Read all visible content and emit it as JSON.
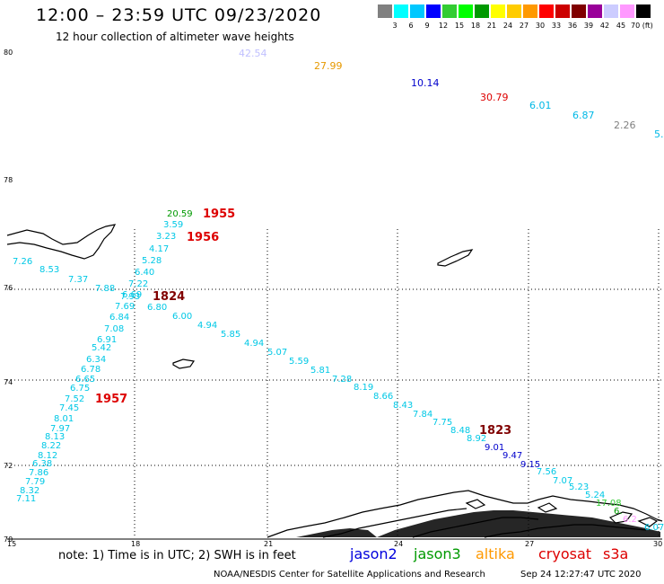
{
  "header": {
    "title": "12:00 – 23:59 UTC 09/23/2020",
    "subtitle": "12 hour collection of altimeter wave heights"
  },
  "color_scale": {
    "labels": [
      "3",
      "6",
      "9",
      "12",
      "15",
      "18",
      "21",
      "24",
      "27",
      "30",
      "33",
      "36",
      "39",
      "42",
      "45",
      "70 (ft)"
    ],
    "colors": [
      "#808080",
      "#00ffff",
      "#00c8ff",
      "#0000ff",
      "#33cc33",
      "#00ff00",
      "#009900",
      "#ffff00",
      "#ffcc00",
      "#ff9900",
      "#ff0000",
      "#cc0000",
      "#800000",
      "#990099",
      "#ccccff",
      "#ff99ff",
      "#000000"
    ]
  },
  "axes": {
    "lat_labels": [
      "80",
      "78",
      "76",
      "74",
      "72",
      "70"
    ],
    "lon_labels": [
      "15",
      "18",
      "21",
      "24",
      "27",
      "30"
    ]
  },
  "tracks": {
    "top": [
      {
        "v": "42.54",
        "c": "#c0c0ff"
      },
      {
        "v": "27.99",
        "c": "#e69900"
      },
      {
        "v": "10.14",
        "c": "#0000cc"
      },
      {
        "v": "30.79",
        "c": "#dd0000"
      },
      {
        "v": "6.01",
        "c": "#00b8e6"
      },
      {
        "v": "6.87",
        "c": "#00b8e6"
      },
      {
        "v": "2.26",
        "c": "#808080"
      },
      {
        "v": "5.",
        "c": "#00b8e6"
      }
    ],
    "track_1956": [
      "20.59",
      "3.59",
      "3.23",
      "4.17",
      "5.28",
      "6.40",
      "7.22",
      "7.88",
      "6.69",
      "7.69",
      "6.84",
      "7.08",
      "6.91",
      "5.42",
      "6.34",
      "6.78",
      "6.65",
      "6.75",
      "7.52",
      "7.45",
      "8.01",
      "7.97",
      "8.13",
      "8.22",
      "8.12",
      "6.38",
      "7.86",
      "7.79",
      "8.32",
      "7.11"
    ],
    "track_west": [
      "7.26",
      "8.53",
      "7.37",
      "7.93"
    ],
    "track_1824": [
      "6.80",
      "6.00",
      "4.94",
      "5.85",
      "4.94",
      "5.07",
      "5.59",
      "5.81",
      "7.28",
      "8.19",
      "8.66",
      "8.43",
      "7.84",
      "7.75",
      "8.48",
      "8.92",
      "9.01",
      "9.47",
      "9.15",
      "7.56",
      "7.07",
      "5.23",
      "5.24",
      "17.08",
      "6.",
      "6.2",
      "6.07"
    ],
    "time_labels": [
      {
        "t": "1955",
        "c": "#dd0000"
      },
      {
        "t": "1956",
        "c": "#dd0000"
      },
      {
        "t": "1824",
        "c": "#800000"
      },
      {
        "t": "1957",
        "c": "#dd0000"
      },
      {
        "t": "1823",
        "c": "#800000"
      }
    ]
  },
  "footer": {
    "note": "note: 1) Time is in UTC; 2) SWH is in feet",
    "satellites": [
      {
        "name": "jason2",
        "color": "#0000dd"
      },
      {
        "name": "jason3",
        "color": "#009900"
      },
      {
        "name": "altika",
        "color": "#ff9900"
      },
      {
        "name": "cryosat",
        "color": "#dd0000"
      },
      {
        "name": "s3a",
        "color": "#dd0000"
      }
    ],
    "credit": "NOAA/NESDIS Center for Satellite Applications and Research",
    "timestamp": "Sep 24 12:27:47 UTC 2020"
  }
}
